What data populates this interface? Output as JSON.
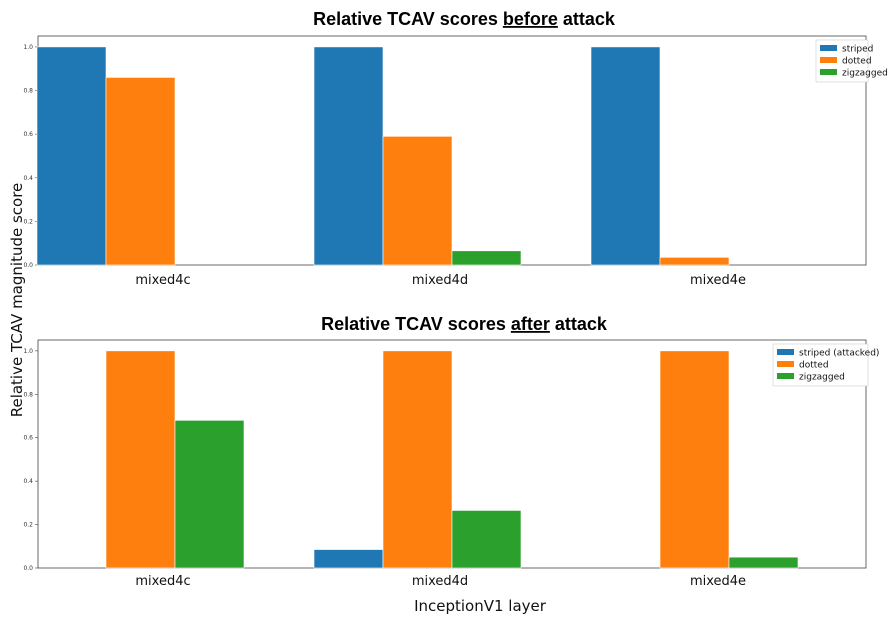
{
  "ylabel": "Relative TCAV magnitude score",
  "xlabel": "InceptionV1 layer",
  "chart_data": [
    {
      "type": "bar",
      "title_parts": [
        "Relative TCAV scores ",
        "before",
        " attack"
      ],
      "categories": [
        "mixed4c",
        "mixed4d",
        "mixed4e"
      ],
      "series": [
        {
          "name": "striped",
          "color": "#1f77b4",
          "values": [
            1.0,
            1.0,
            1.0
          ]
        },
        {
          "name": "dotted",
          "color": "#ff7f0e",
          "values": [
            0.86,
            0.59,
            0.035
          ]
        },
        {
          "name": "zigzagged",
          "color": "#2ca02c",
          "values": [
            0.0,
            0.065,
            0.0
          ]
        }
      ],
      "yticks": [
        "0.0",
        "0.2",
        "0.4",
        "0.6",
        "0.8",
        "1.0"
      ],
      "ylim": [
        0,
        1.05
      ],
      "legend": "top-right"
    },
    {
      "type": "bar",
      "title_parts": [
        "Relative TCAV scores ",
        "after",
        " attack"
      ],
      "categories": [
        "mixed4c",
        "mixed4d",
        "mixed4e"
      ],
      "series": [
        {
          "name": "striped (attacked)",
          "color": "#1f77b4",
          "values": [
            0.0,
            0.085,
            0.0
          ]
        },
        {
          "name": "dotted",
          "color": "#ff7f0e",
          "values": [
            1.0,
            1.0,
            1.0
          ]
        },
        {
          "name": "zigzagged",
          "color": "#2ca02c",
          "values": [
            0.68,
            0.265,
            0.05
          ]
        }
      ],
      "yticks": [
        "0.0",
        "0.2",
        "0.4",
        "0.6",
        "0.8",
        "1.0"
      ],
      "ylim": [
        0,
        1.05
      ],
      "legend": "top-right"
    }
  ]
}
